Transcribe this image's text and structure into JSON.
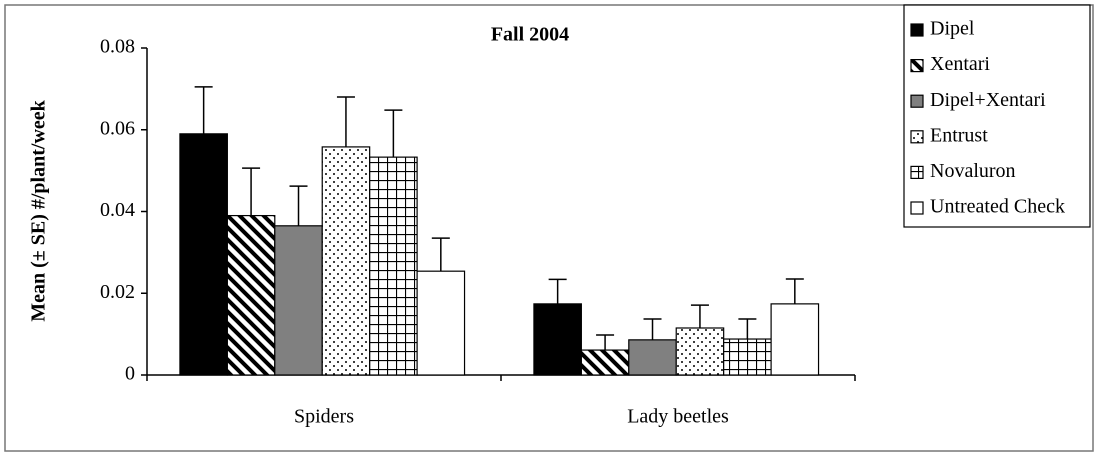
{
  "chart_data": {
    "type": "bar",
    "title": "Fall 2004",
    "ylabel": "Mean (± SE) #/plant/week",
    "categories": [
      "Spiders",
      "Lady beetles"
    ],
    "series": [
      {
        "name": "Dipel",
        "color": "#000000",
        "pattern": "solid",
        "values": [
          0.059,
          0.0174
        ],
        "errors": [
          0.0115,
          0.006
        ]
      },
      {
        "name": "Xentari",
        "color": "#000000",
        "pattern": "hatch",
        "values": [
          0.039,
          0.0061
        ],
        "errors": [
          0.0116,
          0.0037
        ]
      },
      {
        "name": "Dipel+Xentari",
        "color": "#808080",
        "pattern": "solid",
        "values": [
          0.0365,
          0.0086
        ],
        "errors": [
          0.0097,
          0.0051
        ]
      },
      {
        "name": "Entrust",
        "color": "#000000",
        "pattern": "dots",
        "values": [
          0.0558,
          0.0115
        ],
        "errors": [
          0.0122,
          0.0056
        ]
      },
      {
        "name": "Novaluron",
        "color": "#000000",
        "pattern": "grid",
        "values": [
          0.0533,
          0.0088
        ],
        "errors": [
          0.0115,
          0.0049
        ]
      },
      {
        "name": "Untreated Check",
        "color": "#ffffff",
        "pattern": "solid",
        "values": [
          0.0254,
          0.0174
        ],
        "errors": [
          0.0081,
          0.0061
        ]
      }
    ],
    "ylim": [
      0,
      0.08
    ],
    "yticks": [
      0,
      0.02,
      0.04,
      0.06,
      0.08
    ],
    "grid": false,
    "legend": "right"
  }
}
